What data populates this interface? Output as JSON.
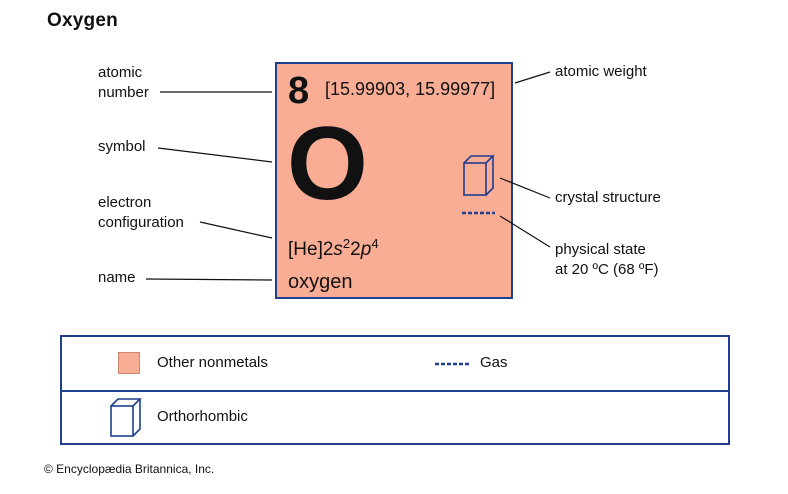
{
  "title": "Oxygen",
  "element": {
    "atomic_number": "8",
    "atomic_weight": "[15.99903, 15.99977]",
    "symbol": "O",
    "configuration": {
      "prefix": "[He]2",
      "orb1": "s",
      "exp1": "2",
      "mid": "2",
      "orb2": "p",
      "exp2": "4"
    },
    "name": "oxygen",
    "tile_color": "#f9ad95",
    "border_color": "#1f3f8f"
  },
  "labels": {
    "atomic_number_line1": "atomic",
    "atomic_number_line2": "number",
    "symbol": "symbol",
    "electron_configuration_line1": "electron",
    "electron_configuration_line2": "configuration",
    "name": "name",
    "atomic_weight": "atomic weight",
    "crystal_structure": "crystal structure",
    "physical_state_line1": "physical state",
    "physical_state_line2": "at 20 ºC (68 ºF)"
  },
  "legend": {
    "category": "Other nonmetals",
    "state": "Gas",
    "crystal": "Orthorhombic"
  },
  "icons": {
    "crystal": "orthorhombic-cube-icon",
    "state": "gas-dashed-line-icon"
  },
  "copyright": "© Encyclopædia Britannica, Inc."
}
